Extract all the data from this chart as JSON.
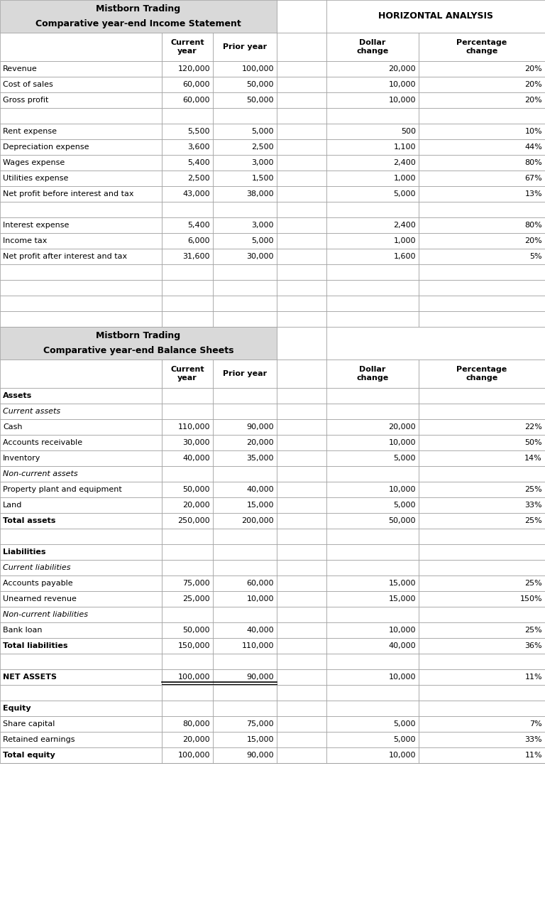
{
  "income_title1": "Mistborn Trading",
  "income_title2": "Comparative year-end Income Statement",
  "balance_title1": "Mistborn Trading",
  "balance_title2": "Comparative year-end Balance Sheets",
  "horiz_title": "HORIZONTAL ANALYSIS",
  "bg_header": "#d9d9d9",
  "bg_white": "#ffffff",
  "border_color": "#999999",
  "font_size": 8.0,
  "title_font_size": 9.0,
  "income_rows": [
    {
      "label": "Revenue",
      "cur": "120,000",
      "pri": "100,000",
      "dol": "20,000",
      "pct": "20%",
      "bold": false,
      "italic": false,
      "empty": false
    },
    {
      "label": "Cost of sales",
      "cur": "60,000",
      "pri": "50,000",
      "dol": "10,000",
      "pct": "20%",
      "bold": false,
      "italic": false,
      "empty": false
    },
    {
      "label": "Gross profit",
      "cur": "60,000",
      "pri": "50,000",
      "dol": "10,000",
      "pct": "20%",
      "bold": false,
      "italic": false,
      "empty": false
    },
    {
      "label": "",
      "cur": "",
      "pri": "",
      "dol": "",
      "pct": "",
      "bold": false,
      "italic": false,
      "empty": true
    },
    {
      "label": "Rent expense",
      "cur": "5,500",
      "pri": "5,000",
      "dol": "500",
      "pct": "10%",
      "bold": false,
      "italic": false,
      "empty": false
    },
    {
      "label": "Depreciation expense",
      "cur": "3,600",
      "pri": "2,500",
      "dol": "1,100",
      "pct": "44%",
      "bold": false,
      "italic": false,
      "empty": false
    },
    {
      "label": "Wages expense",
      "cur": "5,400",
      "pri": "3,000",
      "dol": "2,400",
      "pct": "80%",
      "bold": false,
      "italic": false,
      "empty": false
    },
    {
      "label": "Utilities expense",
      "cur": "2,500",
      "pri": "1,500",
      "dol": "1,000",
      "pct": "67%",
      "bold": false,
      "italic": false,
      "empty": false
    },
    {
      "label": "Net profit before interest and tax",
      "cur": "43,000",
      "pri": "38,000",
      "dol": "5,000",
      "pct": "13%",
      "bold": false,
      "italic": false,
      "empty": false
    },
    {
      "label": "",
      "cur": "",
      "pri": "",
      "dol": "",
      "pct": "",
      "bold": false,
      "italic": false,
      "empty": true
    },
    {
      "label": "Interest expense",
      "cur": "5,400",
      "pri": "3,000",
      "dol": "2,400",
      "pct": "80%",
      "bold": false,
      "italic": false,
      "empty": false
    },
    {
      "label": "Income tax",
      "cur": "6,000",
      "pri": "5,000",
      "dol": "1,000",
      "pct": "20%",
      "bold": false,
      "italic": false,
      "empty": false
    },
    {
      "label": "Net profit after interest and tax",
      "cur": "31,600",
      "pri": "30,000",
      "dol": "1,600",
      "pct": "5%",
      "bold": false,
      "italic": false,
      "empty": false
    }
  ],
  "blank_between": 4,
  "balance_rows": [
    {
      "label": "Assets",
      "cur": "",
      "pri": "",
      "dol": "",
      "pct": "",
      "bold": true,
      "italic": false,
      "empty": false,
      "double_underline": false
    },
    {
      "label": "Current assets",
      "cur": "",
      "pri": "",
      "dol": "",
      "pct": "",
      "bold": false,
      "italic": true,
      "empty": false,
      "double_underline": false
    },
    {
      "label": "Cash",
      "cur": "110,000",
      "pri": "90,000",
      "dol": "20,000",
      "pct": "22%",
      "bold": false,
      "italic": false,
      "empty": false,
      "double_underline": false
    },
    {
      "label": "Accounts receivable",
      "cur": "30,000",
      "pri": "20,000",
      "dol": "10,000",
      "pct": "50%",
      "bold": false,
      "italic": false,
      "empty": false,
      "double_underline": false
    },
    {
      "label": "Inventory",
      "cur": "40,000",
      "pri": "35,000",
      "dol": "5,000",
      "pct": "14%",
      "bold": false,
      "italic": false,
      "empty": false,
      "double_underline": false
    },
    {
      "label": "Non-current assets",
      "cur": "",
      "pri": "",
      "dol": "",
      "pct": "",
      "bold": false,
      "italic": true,
      "empty": false,
      "double_underline": false
    },
    {
      "label": "Property plant and equipment",
      "cur": "50,000",
      "pri": "40,000",
      "dol": "10,000",
      "pct": "25%",
      "bold": false,
      "italic": false,
      "empty": false,
      "double_underline": false
    },
    {
      "label": "Land",
      "cur": "20,000",
      "pri": "15,000",
      "dol": "5,000",
      "pct": "33%",
      "bold": false,
      "italic": false,
      "empty": false,
      "double_underline": false
    },
    {
      "label": "Total assets",
      "cur": "250,000",
      "pri": "200,000",
      "dol": "50,000",
      "pct": "25%",
      "bold": true,
      "italic": false,
      "empty": false,
      "double_underline": false
    },
    {
      "label": "",
      "cur": "",
      "pri": "",
      "dol": "",
      "pct": "",
      "bold": false,
      "italic": false,
      "empty": true,
      "double_underline": false
    },
    {
      "label": "Liabilities",
      "cur": "",
      "pri": "",
      "dol": "",
      "pct": "",
      "bold": true,
      "italic": false,
      "empty": false,
      "double_underline": false
    },
    {
      "label": "Current liabilities",
      "cur": "",
      "pri": "",
      "dol": "",
      "pct": "",
      "bold": false,
      "italic": true,
      "empty": false,
      "double_underline": false
    },
    {
      "label": "Accounts payable",
      "cur": "75,000",
      "pri": "60,000",
      "dol": "15,000",
      "pct": "25%",
      "bold": false,
      "italic": false,
      "empty": false,
      "double_underline": false
    },
    {
      "label": "Unearned revenue",
      "cur": "25,000",
      "pri": "10,000",
      "dol": "15,000",
      "pct": "150%",
      "bold": false,
      "italic": false,
      "empty": false,
      "double_underline": false
    },
    {
      "label": "Non-current liabilities",
      "cur": "",
      "pri": "",
      "dol": "",
      "pct": "",
      "bold": false,
      "italic": true,
      "empty": false,
      "double_underline": false
    },
    {
      "label": "Bank loan",
      "cur": "50,000",
      "pri": "40,000",
      "dol": "10,000",
      "pct": "25%",
      "bold": false,
      "italic": false,
      "empty": false,
      "double_underline": false
    },
    {
      "label": "Total liabilities",
      "cur": "150,000",
      "pri": "110,000",
      "dol": "40,000",
      "pct": "36%",
      "bold": true,
      "italic": false,
      "empty": false,
      "double_underline": false
    },
    {
      "label": "",
      "cur": "",
      "pri": "",
      "dol": "",
      "pct": "",
      "bold": false,
      "italic": false,
      "empty": true,
      "double_underline": false
    },
    {
      "label": "NET ASSETS",
      "cur": "100,000",
      "pri": "90,000",
      "dol": "10,000",
      "pct": "11%",
      "bold": true,
      "italic": false,
      "empty": false,
      "double_underline": true
    },
    {
      "label": "",
      "cur": "",
      "pri": "",
      "dol": "",
      "pct": "",
      "bold": false,
      "italic": false,
      "empty": true,
      "double_underline": false
    },
    {
      "label": "Equity",
      "cur": "",
      "pri": "",
      "dol": "",
      "pct": "",
      "bold": true,
      "italic": false,
      "empty": false,
      "double_underline": false
    },
    {
      "label": "Share capital",
      "cur": "80,000",
      "pri": "75,000",
      "dol": "5,000",
      "pct": "7%",
      "bold": false,
      "italic": false,
      "empty": false,
      "double_underline": false
    },
    {
      "label": "Retained earnings",
      "cur": "20,000",
      "pri": "15,000",
      "dol": "5,000",
      "pct": "33%",
      "bold": false,
      "italic": false,
      "empty": false,
      "double_underline": false
    },
    {
      "label": "Total equity",
      "cur": "100,000",
      "pri": "90,000",
      "dol": "10,000",
      "pct": "11%",
      "bold": true,
      "italic": false,
      "empty": false,
      "double_underline": false
    }
  ]
}
